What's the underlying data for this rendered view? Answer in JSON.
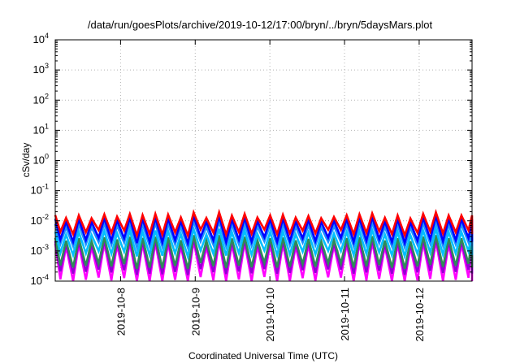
{
  "chart_data": {
    "type": "line",
    "title": "/data/run/goesPlots/archive/2019-10-12/17:00/bryn/../bryn/5daysMars.plot",
    "xlabel": "Coordinated Universal Time (UTC)",
    "ylabel": "cSv/day",
    "yscale": "log",
    "ylim": [
      0.0001,
      10000
    ],
    "y_ticks": [
      {
        "value": 0.0001,
        "base": "10",
        "exp": "-4"
      },
      {
        "value": 0.001,
        "base": "10",
        "exp": "-3"
      },
      {
        "value": 0.01,
        "base": "10",
        "exp": "-2"
      },
      {
        "value": 0.1,
        "base": "10",
        "exp": "-1"
      },
      {
        "value": 1,
        "base": "10",
        "exp": "0"
      },
      {
        "value": 10,
        "base": "10",
        "exp": "1"
      },
      {
        "value": 100,
        "base": "10",
        "exp": "2"
      },
      {
        "value": 1000,
        "base": "10",
        "exp": "3"
      },
      {
        "value": 10000,
        "base": "10",
        "exp": "4"
      }
    ],
    "xlim": [
      "2019-10-07T03:00",
      "2019-10-12T17:00"
    ],
    "x_ticks": [
      "2019-10-8",
      "2019-10-9",
      "2019-10-10",
      "2019-10-11",
      "2019-10-12"
    ],
    "x_tick_dates": [
      "2019-10-08T00:00",
      "2019-10-09T00:00",
      "2019-10-10T00:00",
      "2019-10-11T00:00",
      "2019-10-12T00:00"
    ],
    "grid": true,
    "legend": "none",
    "sawtooth_period_hours": 4.1,
    "series": [
      {
        "color": "#ff0000",
        "peak": 0.016,
        "trough": 0.0045
      },
      {
        "color": "#0000ff",
        "peak": 0.012,
        "trough": 0.0025
      },
      {
        "color": "#1e90ff",
        "peak": 0.008,
        "trough": 0.0018
      },
      {
        "color": "#00bfff",
        "peak": 0.0045,
        "trough": 0.0009
      },
      {
        "color": "#2e8b57",
        "peak": 0.0028,
        "trough": 0.00035
      },
      {
        "color": "#9400d3",
        "peak": 0.0022,
        "trough": 0.00022
      },
      {
        "color": "#ff00ff",
        "peak": 0.0018,
        "trough": 0.00012
      }
    ]
  }
}
